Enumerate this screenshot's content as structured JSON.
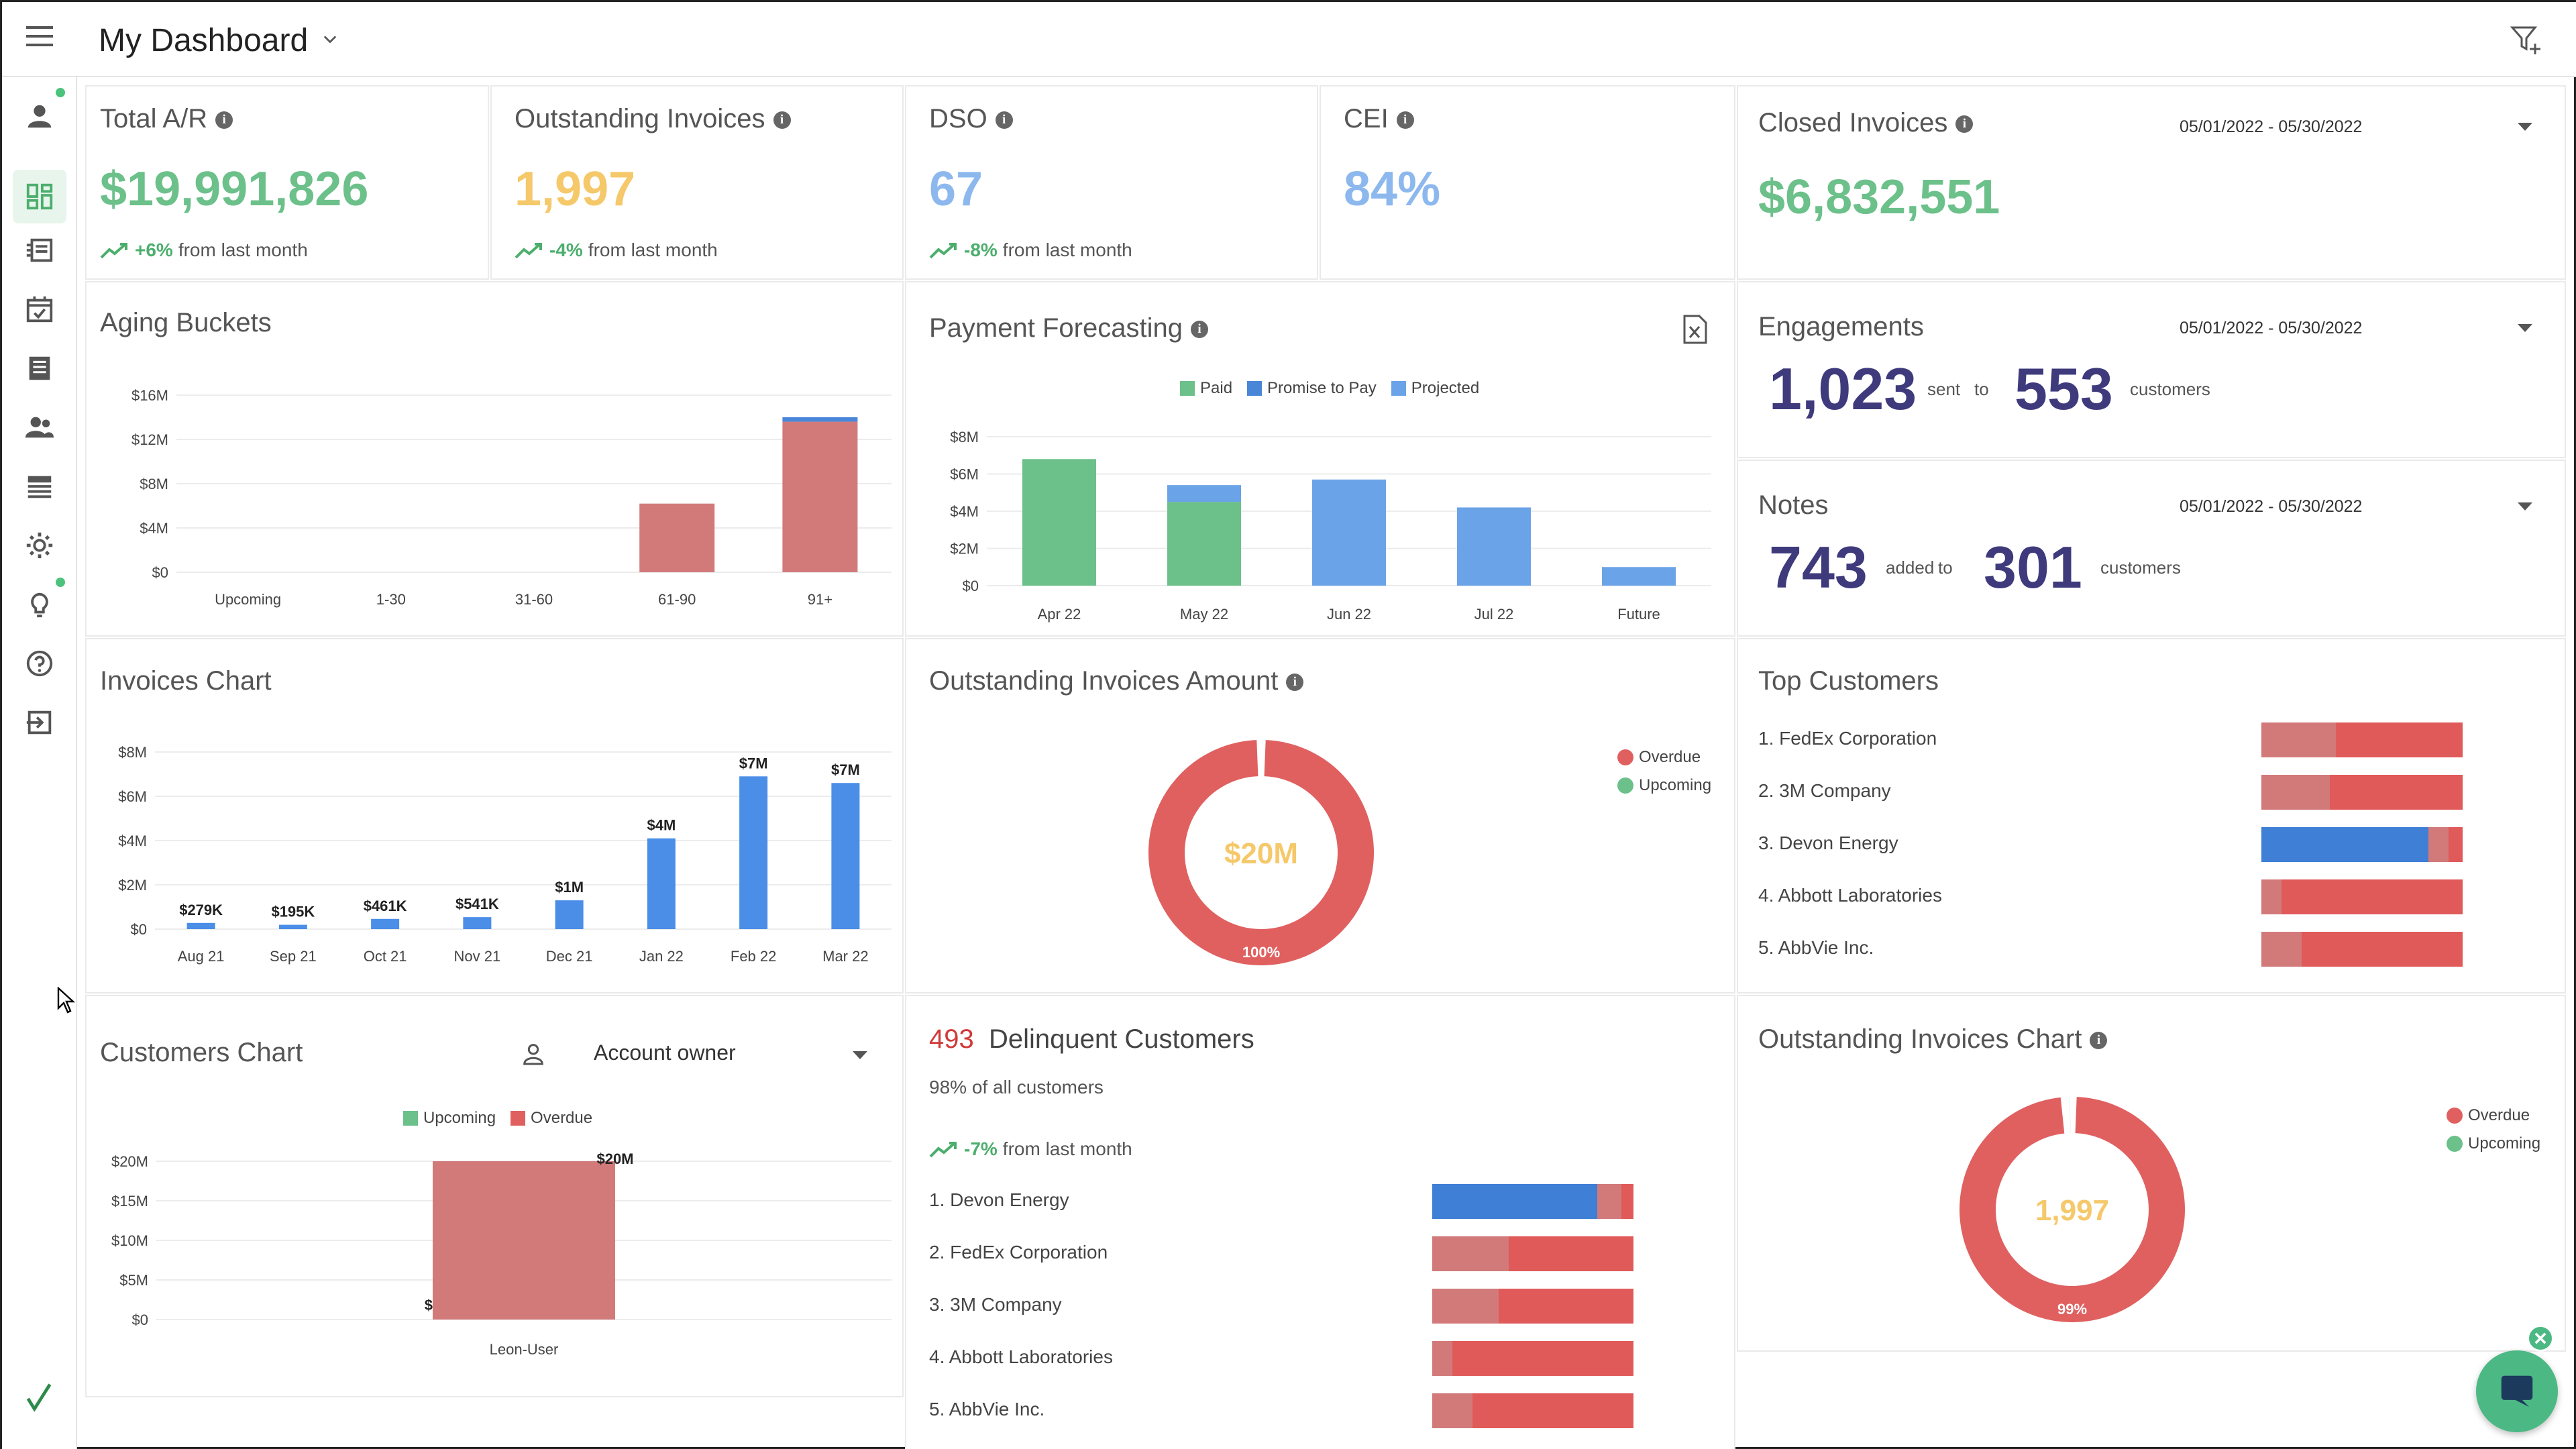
{
  "header": {
    "title": "My Dashboard"
  },
  "kpis": {
    "total_ar": {
      "title": "Total A/R",
      "value": "$19,991,826",
      "trend_pct": "+6%",
      "trend_text": "from last month"
    },
    "outstanding": {
      "title": "Outstanding Invoices",
      "value": "1,997",
      "trend_pct": "-4%",
      "trend_text": "from last month"
    },
    "dso": {
      "title": "DSO",
      "value": "67",
      "trend_pct": "-8%",
      "trend_text": "from last month"
    },
    "cei": {
      "title": "CEI",
      "value": "84%"
    },
    "closed": {
      "title": "Closed Invoices",
      "value": "$6,832,551",
      "date": "05/01/2022 - 05/30/2022"
    }
  },
  "engagements": {
    "title": "Engagements",
    "date": "05/01/2022 - 05/30/2022",
    "sent": "1,023",
    "sent_label": "sent",
    "to_label": "to",
    "customers": "553",
    "customers_label": "customers"
  },
  "notes": {
    "title": "Notes",
    "date": "05/01/2022 - 05/30/2022",
    "added": "743",
    "added_label": "added",
    "to_label": "to",
    "customers": "301",
    "customers_label": "customers"
  },
  "colors": {
    "green": "#6cc08a",
    "yellow": "#f5c86a",
    "blue": "#6aa3e8",
    "red": "#e06060",
    "pink": "#d27a7a",
    "navy": "#3e3a7c",
    "bright_blue": "#4a8ee8"
  },
  "aging": {
    "title": "Aging Buckets"
  },
  "forecast": {
    "title": "Payment Forecasting",
    "legend": [
      "Paid",
      "Promise to Pay",
      "Projected"
    ]
  },
  "invoices_chart": {
    "title": "Invoices Chart"
  },
  "oia": {
    "title": "Outstanding Invoices Amount",
    "center": "$20M",
    "pct": "100%",
    "legend": [
      "Overdue",
      "Upcoming"
    ]
  },
  "top_customers": {
    "title": "Top Customers",
    "items": [
      "1. FedEx Corporation",
      "2. 3M Company",
      "3. Devon Energy",
      "4. Abbott Laboratories",
      "5. AbbVie Inc."
    ]
  },
  "customers_chart": {
    "title": "Customers Chart",
    "select": "Account owner",
    "legend": [
      "Upcoming",
      "Overdue"
    ]
  },
  "delinquent": {
    "count": "493",
    "title": "Delinquent Customers",
    "sub": "98% of all customers",
    "trend_pct": "-7%",
    "trend_text": "from last month",
    "items": [
      "1. Devon Energy",
      "2. FedEx Corporation",
      "3. 3M Company",
      "4. Abbott Laboratories",
      "5. AbbVie Inc."
    ]
  },
  "oic": {
    "title": "Outstanding Invoices Chart",
    "center": "1,997",
    "pct": "99%",
    "legend": [
      "Overdue",
      "Upcoming"
    ]
  },
  "chart_data": [
    {
      "type": "bar",
      "title": "Aging Buckets",
      "categories": [
        "Upcoming",
        "1-30",
        "31-60",
        "61-90",
        "91+"
      ],
      "series": [
        {
          "values": [
            0,
            0,
            0,
            6.2,
            13.6
          ]
        },
        {
          "values": [
            0,
            0,
            0,
            0,
            0.4
          ]
        }
      ],
      "ytick_labels": [
        "$0",
        "$4M",
        "$8M",
        "$12M",
        "$16M"
      ],
      "ylim": [
        0,
        16
      ]
    },
    {
      "type": "bar",
      "title": "Payment Forecasting",
      "categories": [
        "Apr 22",
        "May 22",
        "Jun 22",
        "Jul 22",
        "Future"
      ],
      "series": [
        {
          "name": "Paid",
          "values": [
            6.8,
            4.5,
            0,
            0,
            0
          ]
        },
        {
          "name": "Promise to Pay",
          "values": [
            0,
            0,
            0,
            0,
            0
          ]
        },
        {
          "name": "Projected",
          "values": [
            0,
            0.9,
            5.7,
            4.2,
            1.0
          ]
        }
      ],
      "ytick_labels": [
        "$0",
        "$2M",
        "$4M",
        "$6M",
        "$8M"
      ],
      "ylim": [
        0,
        8
      ]
    },
    {
      "type": "bar",
      "title": "Invoices Chart",
      "categories": [
        "Aug 21",
        "Sep 21",
        "Oct 21",
        "Nov 21",
        "Dec 21",
        "Jan 22",
        "Feb 22",
        "Mar 22"
      ],
      "values": [
        0.279,
        0.195,
        0.461,
        0.541,
        1.3,
        4.1,
        6.9,
        6.6
      ],
      "data_labels": [
        "$279K",
        "$195K",
        "$461K",
        "$541K",
        "$1M",
        "$4M",
        "$7M",
        "$7M"
      ],
      "ytick_labels": [
        "$0",
        "$2M",
        "$4M",
        "$6M",
        "$8M"
      ],
      "ylim": [
        0,
        8
      ]
    },
    {
      "type": "pie",
      "title": "Outstanding Invoices Amount",
      "labels": [
        "Overdue",
        "Upcoming"
      ],
      "values": [
        100,
        0
      ]
    },
    {
      "type": "bar",
      "title": "Customers Chart",
      "categories": [
        "Leon-User"
      ],
      "series": [
        {
          "name": "Upcoming",
          "values": [
            0
          ]
        },
        {
          "name": "Overdue",
          "values": [
            20
          ]
        }
      ],
      "data_labels": [
        "$0",
        "$20M"
      ],
      "ytick_labels": [
        "$0",
        "$5M",
        "$10M",
        "$15M",
        "$20M"
      ],
      "ylim": [
        0,
        20
      ]
    },
    {
      "type": "pie",
      "title": "Outstanding Invoices Chart",
      "labels": [
        "Overdue",
        "Upcoming"
      ],
      "values": [
        99,
        1
      ]
    }
  ]
}
